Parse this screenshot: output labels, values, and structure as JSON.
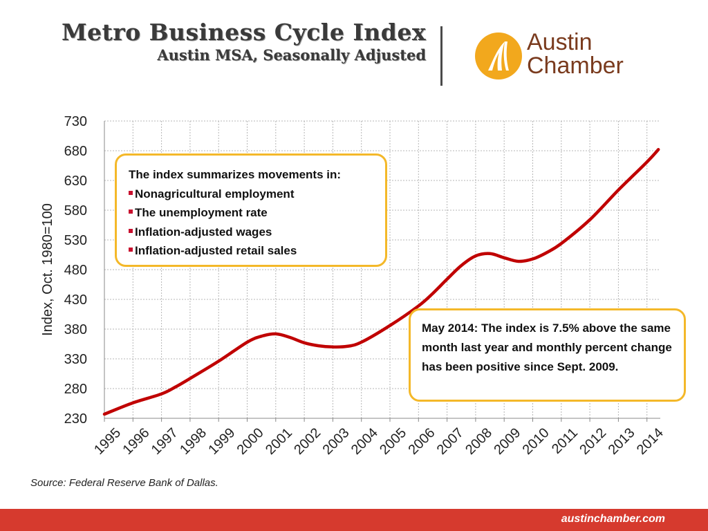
{
  "header": {
    "title": "Metro Business Cycle Index",
    "subtitle": "Austin MSA, Seasonally Adjusted"
  },
  "logo": {
    "name_line1": "Austin",
    "name_line2": "Chamber",
    "icon": "austin-chamber-logo-icon",
    "colors": {
      "circle": "#f2a81d",
      "glyph": "#ffffff",
      "text": "#7a3b1e"
    }
  },
  "callouts": {
    "components": {
      "heading": "The index summarizes movements in:",
      "items": [
        "Nonagricultural employment",
        "The unemployment rate",
        "Inflation-adjusted wages",
        "Inflation-adjusted retail sales"
      ]
    },
    "note": "May 2014: The index is 7.5% above the same month last year and monthly percent change has been positive since Sept. 2009."
  },
  "source": "Source: Federal Reserve Bank of Dallas.",
  "footer": {
    "url": "austinchamber.com"
  },
  "colors": {
    "line": "#c00000",
    "callout_border": "#f4b829",
    "bullet": "#c8102e",
    "footer_bg": "#d63a2e"
  },
  "chart_data": {
    "type": "line",
    "title": "Metro Business Cycle Index",
    "subtitle": "Austin MSA, Seasonally Adjusted",
    "xlabel": "",
    "ylabel": "Index, Oct. 1980=100",
    "ylim": [
      230,
      730
    ],
    "yticks": [
      230,
      280,
      330,
      380,
      430,
      480,
      530,
      580,
      630,
      680,
      730
    ],
    "xlim": [
      1995,
      2014.5
    ],
    "xticks": [
      "1995",
      "1996",
      "1997",
      "1998",
      "1999",
      "2000",
      "2001",
      "2002",
      "2003",
      "2004",
      "2005",
      "2006",
      "2007",
      "2008",
      "2009",
      "2010",
      "2011",
      "2012",
      "2013",
      "2014"
    ],
    "grid": true,
    "legend": "none",
    "series": [
      {
        "color": "#c00000",
        "x": [
          1995.0,
          1996.0,
          1997.0,
          1997.5,
          1998.0,
          1999.0,
          2000.0,
          2000.5,
          2001.0,
          2001.5,
          2002.0,
          2002.5,
          2003.0,
          2003.5,
          2004.0,
          2005.0,
          2006.0,
          2006.5,
          2007.0,
          2007.5,
          2008.0,
          2008.5,
          2009.0,
          2009.5,
          2010.0,
          2010.5,
          2011.0,
          2012.0,
          2013.0,
          2014.0,
          2014.4
        ],
        "y": [
          237,
          256,
          271,
          283,
          297,
          326,
          358,
          368,
          372,
          366,
          357,
          352,
          350,
          351,
          358,
          386,
          419,
          440,
          464,
          487,
          503,
          507,
          500,
          494,
          498,
          509,
          524,
          564,
          614,
          661,
          682
        ]
      }
    ]
  }
}
